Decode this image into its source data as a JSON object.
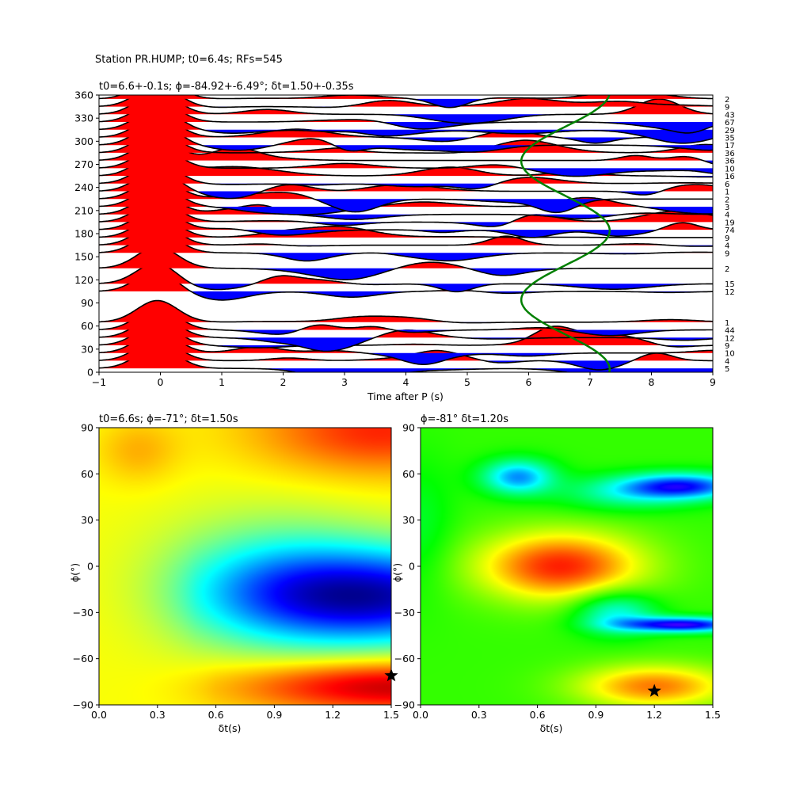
{
  "suptitle": "Station PR.HUMP; t0=6.4s; RFs=545",
  "chart_data": [
    {
      "type": "line",
      "name": "rf-stack",
      "title": "t0=6.6+-0.1s; ϕ=-84.92+-6.49°; δt=1.50+-0.35s",
      "xlabel": "Time after P (s)",
      "ylabel": "",
      "xlim": [
        -1,
        9
      ],
      "ylim": [
        0,
        360
      ],
      "xticks": [
        "−1",
        "0",
        "1",
        "2",
        "3",
        "4",
        "5",
        "6",
        "7",
        "8",
        "9"
      ],
      "yticks": [
        "0",
        "30",
        "60",
        "90",
        "120",
        "150",
        "180",
        "210",
        "240",
        "270",
        "300",
        "330",
        "360"
      ],
      "positive_fill": "#ff0000",
      "negative_fill": "#0000ff",
      "trace_color": "#000000",
      "model_curve_color": "#008000",
      "traces": [
        {
          "baz": 5,
          "count": "5"
        },
        {
          "baz": 15,
          "count": "4"
        },
        {
          "baz": 25,
          "count": "10"
        },
        {
          "baz": 35,
          "count": "9"
        },
        {
          "baz": 45,
          "count": "12"
        },
        {
          "baz": 55,
          "count": "44"
        },
        {
          "baz": 65,
          "count": "1"
        },
        {
          "baz": 105,
          "count": "12"
        },
        {
          "baz": 115,
          "count": "15"
        },
        {
          "baz": 135,
          "count": "2"
        },
        {
          "baz": 155,
          "count": "9"
        },
        {
          "baz": 165,
          "count": "4"
        },
        {
          "baz": 175,
          "count": "9"
        },
        {
          "baz": 185,
          "count": "74"
        },
        {
          "baz": 195,
          "count": "19"
        },
        {
          "baz": 205,
          "count": "4"
        },
        {
          "baz": 215,
          "count": "3"
        },
        {
          "baz": 225,
          "count": "2"
        },
        {
          "baz": 235,
          "count": "1"
        },
        {
          "baz": 245,
          "count": "6"
        },
        {
          "baz": 255,
          "count": "16"
        },
        {
          "baz": 265,
          "count": "10"
        },
        {
          "baz": 275,
          "count": "36"
        },
        {
          "baz": 285,
          "count": "36"
        },
        {
          "baz": 295,
          "count": "17"
        },
        {
          "baz": 305,
          "count": "35"
        },
        {
          "baz": 315,
          "count": "29"
        },
        {
          "baz": 325,
          "count": "67"
        },
        {
          "baz": 335,
          "count": "43"
        },
        {
          "baz": 345,
          "count": "9"
        },
        {
          "baz": 355,
          "count": "2"
        }
      ]
    },
    {
      "type": "heatmap",
      "name": "misfit-left",
      "title": "t0=6.6s; ϕ=-71°; δt=1.50s",
      "xlabel": "δt(s)",
      "ylabel": "ϕ(°)",
      "xlim": [
        0.0,
        1.5
      ],
      "ylim": [
        -90,
        90
      ],
      "xticks": [
        "0.0",
        "0.3",
        "0.6",
        "0.9",
        "1.2",
        "1.5"
      ],
      "yticks": [
        "−90",
        "−60",
        "−30",
        "0",
        "30",
        "60",
        "90"
      ],
      "best": {
        "dt": 1.5,
        "phi": -71
      },
      "colormap": "jet"
    },
    {
      "type": "heatmap",
      "name": "misfit-right",
      "title": "ϕ=-81° δt=1.20s",
      "xlabel": "δt(s)",
      "ylabel": "ϕ(°)",
      "xlim": [
        0.0,
        1.5
      ],
      "ylim": [
        -90,
        90
      ],
      "xticks": [
        "0.0",
        "0.3",
        "0.6",
        "0.9",
        "1.2",
        "1.5"
      ],
      "yticks": [
        "−90",
        "−60",
        "−30",
        "0",
        "30",
        "60",
        "90"
      ],
      "best": {
        "dt": 1.2,
        "phi": -81
      },
      "colormap": "hsv"
    }
  ]
}
